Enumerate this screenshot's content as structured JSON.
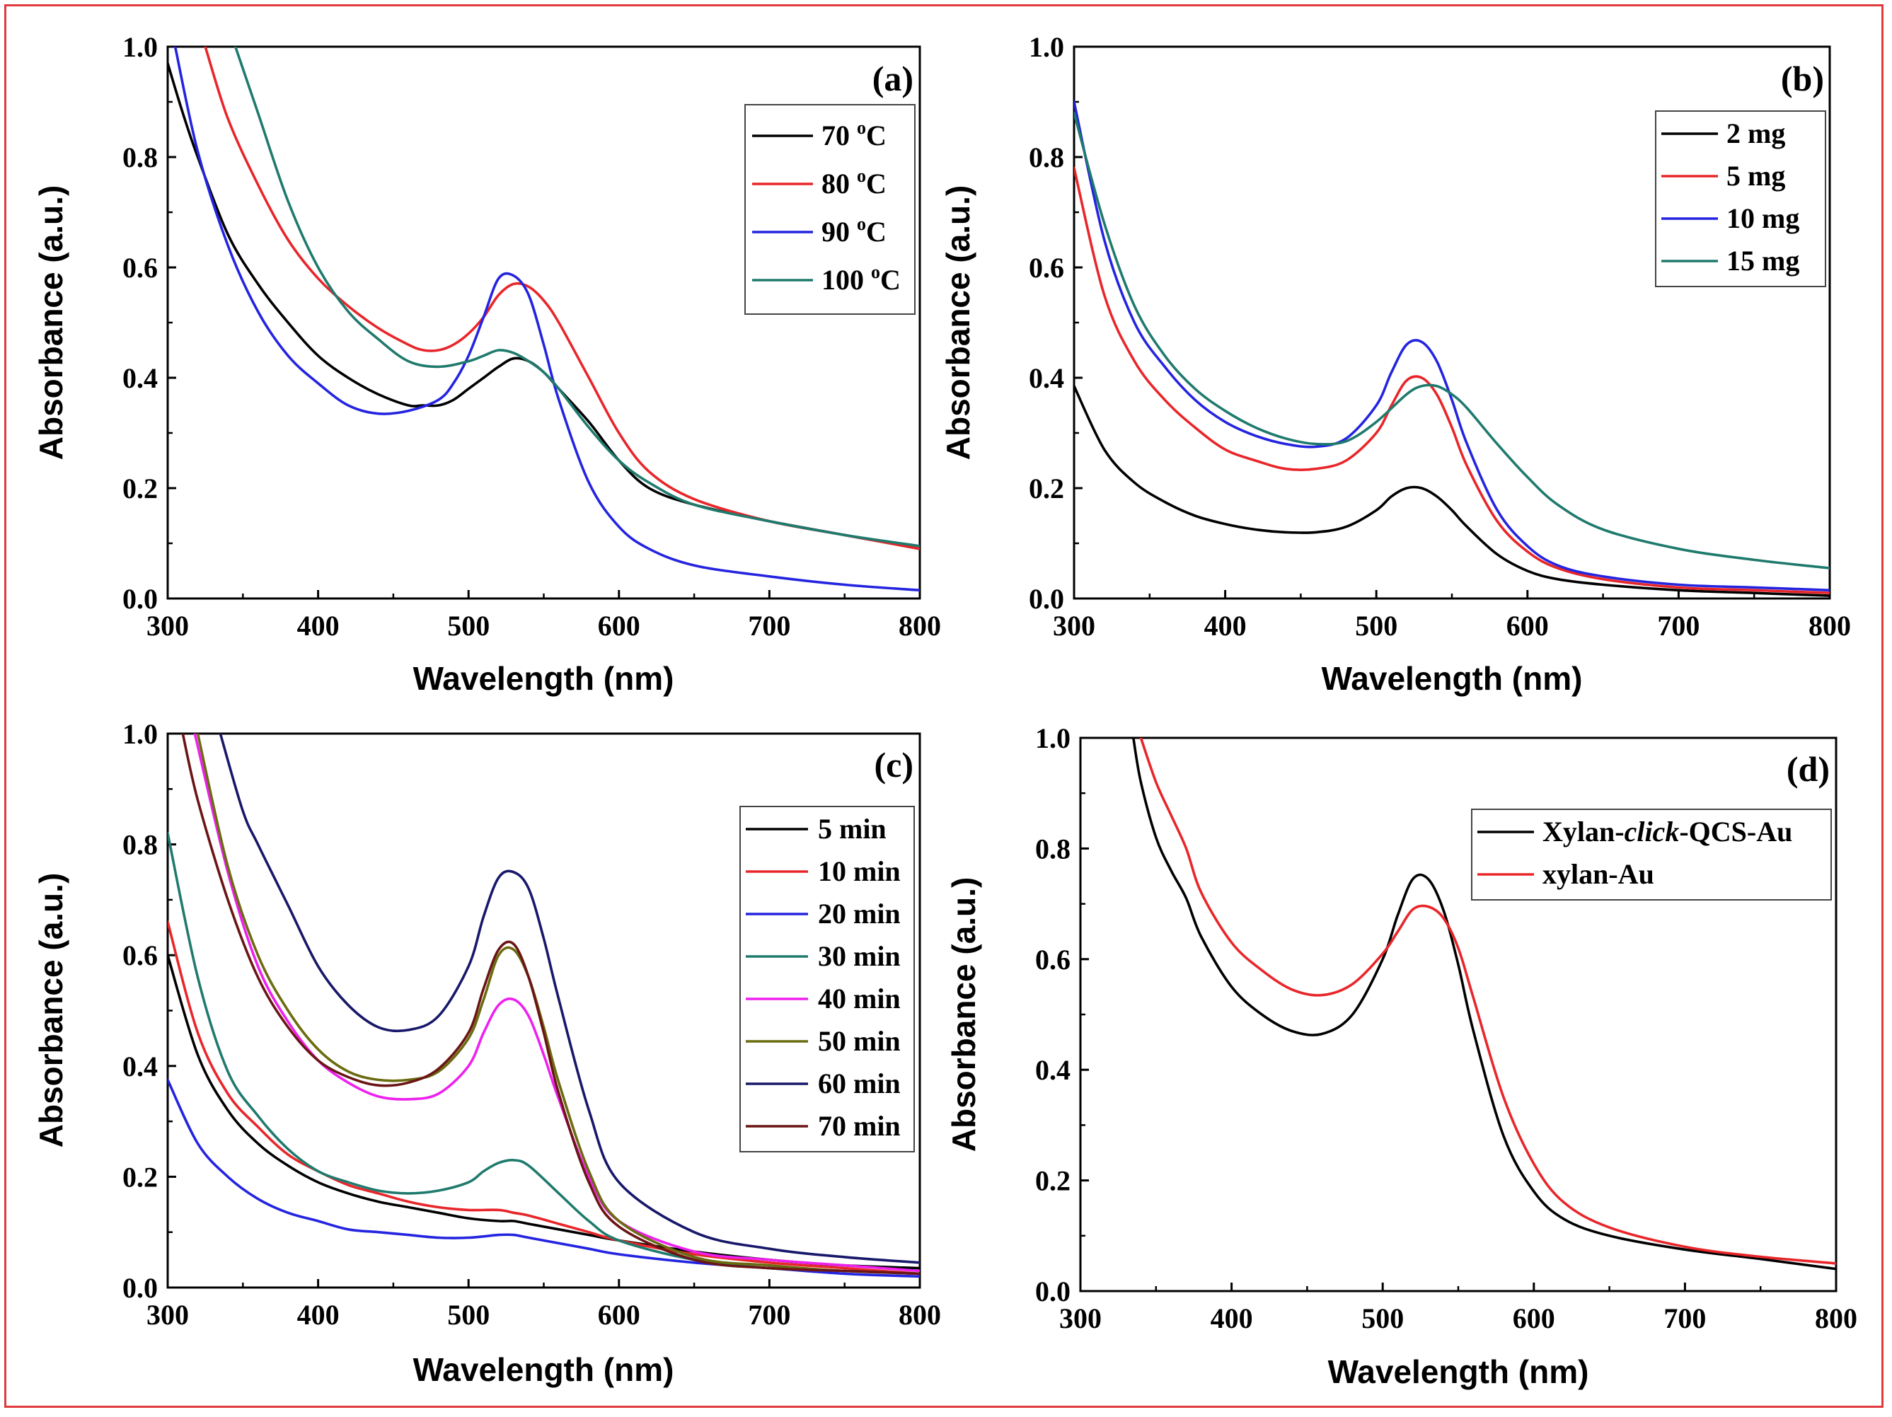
{
  "chart_data": [
    {
      "type": "line",
      "panel_label": "(a)",
      "xlabel": "Wavelength (nm)",
      "ylabel": "Absorbance (a.u.)",
      "xlim": [
        300,
        800
      ],
      "ylim": [
        0.0,
        1.0
      ],
      "xticks": [
        "300",
        "400",
        "500",
        "600",
        "700",
        "800"
      ],
      "yticks": [
        "0.0",
        "0.2",
        "0.4",
        "0.6",
        "0.8",
        "1.0"
      ],
      "legend_position": "top-right",
      "series": [
        {
          "name": "70 °C",
          "name_main": "70 ",
          "name_sup": "o",
          "name_tail": "C",
          "color": "#000000",
          "x": [
            300,
            310,
            320,
            340,
            360,
            380,
            400,
            420,
            440,
            460,
            470,
            480,
            490,
            500,
            510,
            520,
            530,
            540,
            550,
            560,
            580,
            600,
            620,
            650,
            700,
            750,
            800
          ],
          "y": [
            0.97,
            0.88,
            0.8,
            0.66,
            0.57,
            0.5,
            0.44,
            0.4,
            0.37,
            0.35,
            0.35,
            0.35,
            0.36,
            0.38,
            0.4,
            0.42,
            0.435,
            0.43,
            0.41,
            0.38,
            0.32,
            0.25,
            0.2,
            0.17,
            0.14,
            0.115,
            0.09
          ]
        },
        {
          "name": "80 °C",
          "name_main": "80 ",
          "name_sup": "o",
          "name_tail": "C",
          "color": "#e8262a",
          "x": [
            325,
            340,
            360,
            380,
            400,
            420,
            440,
            460,
            470,
            480,
            490,
            500,
            510,
            520,
            530,
            540,
            550,
            560,
            580,
            600,
            620,
            650,
            700,
            750,
            800
          ],
          "y": [
            1.0,
            0.87,
            0.75,
            0.65,
            0.58,
            0.53,
            0.49,
            0.46,
            0.45,
            0.45,
            0.46,
            0.48,
            0.51,
            0.55,
            0.57,
            0.565,
            0.54,
            0.5,
            0.4,
            0.3,
            0.23,
            0.18,
            0.14,
            0.115,
            0.09
          ]
        },
        {
          "name": "90 °C",
          "name_main": "90 ",
          "name_sup": "o",
          "name_tail": "C",
          "color": "#2424e0",
          "x": [
            305,
            320,
            340,
            360,
            380,
            400,
            420,
            440,
            460,
            480,
            490,
            500,
            510,
            520,
            530,
            540,
            550,
            560,
            580,
            600,
            620,
            650,
            700,
            750,
            800
          ],
          "y": [
            1.0,
            0.81,
            0.64,
            0.52,
            0.44,
            0.39,
            0.35,
            0.335,
            0.34,
            0.36,
            0.39,
            0.44,
            0.51,
            0.58,
            0.585,
            0.55,
            0.46,
            0.36,
            0.21,
            0.13,
            0.09,
            0.06,
            0.04,
            0.025,
            0.015
          ]
        },
        {
          "name": "100 °C",
          "name_main": "100 ",
          "name_sup": "o",
          "name_tail": "C",
          "color": "#1f7a6d",
          "x": [
            345,
            360,
            380,
            400,
            420,
            440,
            460,
            480,
            500,
            510,
            520,
            530,
            540,
            550,
            560,
            580,
            600,
            620,
            650,
            700,
            750,
            800
          ],
          "y": [
            1.0,
            0.88,
            0.72,
            0.6,
            0.52,
            0.47,
            0.43,
            0.42,
            0.43,
            0.44,
            0.45,
            0.445,
            0.43,
            0.41,
            0.38,
            0.31,
            0.25,
            0.21,
            0.17,
            0.14,
            0.115,
            0.095
          ]
        }
      ]
    },
    {
      "type": "line",
      "panel_label": "(b)",
      "xlabel": "Wavelength (nm)",
      "ylabel": "Absorbance (a.u.)",
      "xlim": [
        300,
        800
      ],
      "ylim": [
        0.0,
        1.0
      ],
      "xticks": [
        "300",
        "400",
        "500",
        "600",
        "700",
        "800"
      ],
      "yticks": [
        "0.0",
        "0.2",
        "0.4",
        "0.6",
        "0.8",
        "1.0"
      ],
      "legend_position": "top-right",
      "series": [
        {
          "name": "2 mg",
          "color": "#000000",
          "x": [
            300,
            320,
            340,
            360,
            380,
            400,
            420,
            440,
            460,
            480,
            500,
            510,
            520,
            530,
            540,
            550,
            560,
            580,
            600,
            620,
            650,
            700,
            750,
            800
          ],
          "y": [
            0.385,
            0.27,
            0.21,
            0.175,
            0.15,
            0.135,
            0.125,
            0.12,
            0.12,
            0.13,
            0.16,
            0.185,
            0.2,
            0.2,
            0.185,
            0.16,
            0.13,
            0.08,
            0.05,
            0.035,
            0.025,
            0.015,
            0.01,
            0.005
          ]
        },
        {
          "name": "5 mg",
          "color": "#e8262a",
          "x": [
            300,
            320,
            340,
            360,
            380,
            400,
            420,
            440,
            460,
            480,
            500,
            510,
            520,
            530,
            540,
            550,
            560,
            580,
            600,
            620,
            650,
            700,
            750,
            800
          ],
          "y": [
            0.78,
            0.55,
            0.43,
            0.36,
            0.31,
            0.27,
            0.25,
            0.235,
            0.235,
            0.25,
            0.3,
            0.35,
            0.395,
            0.4,
            0.37,
            0.31,
            0.24,
            0.14,
            0.085,
            0.055,
            0.035,
            0.02,
            0.015,
            0.01
          ]
        },
        {
          "name": "10 mg",
          "color": "#2424e0",
          "x": [
            300,
            320,
            340,
            360,
            380,
            400,
            420,
            440,
            460,
            480,
            500,
            510,
            520,
            530,
            540,
            550,
            560,
            580,
            600,
            620,
            650,
            700,
            750,
            800
          ],
          "y": [
            0.9,
            0.65,
            0.5,
            0.42,
            0.36,
            0.32,
            0.295,
            0.28,
            0.275,
            0.29,
            0.35,
            0.41,
            0.46,
            0.465,
            0.43,
            0.36,
            0.28,
            0.16,
            0.095,
            0.06,
            0.04,
            0.025,
            0.02,
            0.015
          ]
        },
        {
          "name": "15 mg",
          "color": "#1f7a6d",
          "x": [
            300,
            320,
            340,
            360,
            380,
            400,
            420,
            440,
            460,
            480,
            500,
            520,
            530,
            540,
            550,
            560,
            580,
            600,
            620,
            650,
            700,
            750,
            800
          ],
          "y": [
            0.88,
            0.68,
            0.53,
            0.44,
            0.38,
            0.34,
            0.31,
            0.29,
            0.28,
            0.285,
            0.32,
            0.37,
            0.385,
            0.385,
            0.37,
            0.345,
            0.28,
            0.22,
            0.17,
            0.125,
            0.09,
            0.07,
            0.055
          ]
        }
      ]
    },
    {
      "type": "line",
      "panel_label": "(c)",
      "xlabel": "Wavelength (nm)",
      "ylabel": "Absorbance (a.u.)",
      "xlim": [
        300,
        800
      ],
      "ylim": [
        0.0,
        1.0
      ],
      "xticks": [
        "300",
        "400",
        "500",
        "600",
        "700",
        "800"
      ],
      "yticks": [
        "0.0",
        "0.2",
        "0.4",
        "0.6",
        "0.8",
        "1.0"
      ],
      "legend_position": "top-right",
      "series": [
        {
          "name": "5 min",
          "color": "#000000",
          "x": [
            300,
            320,
            340,
            360,
            380,
            400,
            420,
            440,
            460,
            480,
            500,
            520,
            530,
            540,
            560,
            580,
            600,
            650,
            700,
            750,
            800
          ],
          "y": [
            0.6,
            0.42,
            0.32,
            0.26,
            0.22,
            0.19,
            0.17,
            0.155,
            0.145,
            0.135,
            0.125,
            0.12,
            0.12,
            0.115,
            0.105,
            0.095,
            0.085,
            0.065,
            0.05,
            0.04,
            0.035
          ]
        },
        {
          "name": "10 min",
          "color": "#e8262a",
          "x": [
            300,
            320,
            340,
            360,
            380,
            400,
            420,
            440,
            460,
            480,
            500,
            520,
            530,
            540,
            560,
            580,
            600,
            650,
            700,
            750,
            800
          ],
          "y": [
            0.66,
            0.46,
            0.35,
            0.29,
            0.24,
            0.21,
            0.185,
            0.17,
            0.155,
            0.145,
            0.14,
            0.14,
            0.135,
            0.13,
            0.115,
            0.1,
            0.085,
            0.06,
            0.045,
            0.035,
            0.025
          ]
        },
        {
          "name": "20 min",
          "color": "#2424e0",
          "x": [
            300,
            320,
            340,
            360,
            380,
            400,
            420,
            440,
            460,
            480,
            500,
            520,
            530,
            540,
            560,
            580,
            600,
            650,
            700,
            750,
            800
          ],
          "y": [
            0.375,
            0.26,
            0.2,
            0.16,
            0.135,
            0.12,
            0.105,
            0.1,
            0.095,
            0.09,
            0.09,
            0.095,
            0.095,
            0.09,
            0.08,
            0.07,
            0.06,
            0.045,
            0.035,
            0.025,
            0.02
          ]
        },
        {
          "name": "30 min",
          "color": "#1f7a6d",
          "x": [
            300,
            320,
            340,
            360,
            380,
            400,
            420,
            440,
            460,
            480,
            500,
            510,
            520,
            530,
            540,
            560,
            580,
            600,
            650,
            700,
            750,
            800
          ],
          "y": [
            0.82,
            0.56,
            0.39,
            0.31,
            0.25,
            0.21,
            0.19,
            0.175,
            0.17,
            0.175,
            0.19,
            0.21,
            0.225,
            0.23,
            0.22,
            0.17,
            0.12,
            0.085,
            0.05,
            0.035,
            0.03,
            0.025
          ]
        },
        {
          "name": "40 min",
          "color": "#ee20ee",
          "x": [
            318,
            340,
            360,
            380,
            400,
            420,
            440,
            460,
            480,
            500,
            510,
            520,
            530,
            540,
            550,
            560,
            580,
            600,
            650,
            700,
            750,
            800
          ],
          "y": [
            1.0,
            0.75,
            0.58,
            0.48,
            0.41,
            0.37,
            0.345,
            0.34,
            0.35,
            0.4,
            0.46,
            0.51,
            0.52,
            0.49,
            0.42,
            0.34,
            0.2,
            0.12,
            0.065,
            0.05,
            0.04,
            0.03
          ]
        },
        {
          "name": "50 min",
          "color": "#6b6b10",
          "x": [
            320,
            340,
            360,
            380,
            400,
            420,
            440,
            460,
            480,
            500,
            510,
            520,
            530,
            540,
            550,
            560,
            580,
            600,
            650,
            700,
            750,
            800
          ],
          "y": [
            1.0,
            0.76,
            0.6,
            0.5,
            0.43,
            0.39,
            0.375,
            0.375,
            0.39,
            0.45,
            0.52,
            0.6,
            0.61,
            0.56,
            0.47,
            0.37,
            0.21,
            0.12,
            0.055,
            0.04,
            0.03,
            0.025
          ]
        },
        {
          "name": "60 min",
          "color": "#18186a",
          "x": [
            335,
            350,
            360,
            380,
            400,
            420,
            440,
            460,
            480,
            500,
            510,
            520,
            530,
            540,
            550,
            560,
            580,
            600,
            650,
            700,
            750,
            800
          ],
          "y": [
            1.0,
            0.86,
            0.8,
            0.69,
            0.58,
            0.51,
            0.47,
            0.465,
            0.49,
            0.58,
            0.67,
            0.74,
            0.75,
            0.72,
            0.63,
            0.52,
            0.32,
            0.19,
            0.1,
            0.07,
            0.055,
            0.045
          ]
        },
        {
          "name": "70 min",
          "color": "#6b1515",
          "x": [
            310,
            320,
            340,
            360,
            380,
            400,
            420,
            440,
            460,
            480,
            500,
            510,
            520,
            530,
            540,
            550,
            560,
            580,
            600,
            650,
            700,
            750,
            800
          ],
          "y": [
            1.0,
            0.88,
            0.7,
            0.56,
            0.47,
            0.41,
            0.38,
            0.365,
            0.37,
            0.395,
            0.46,
            0.54,
            0.61,
            0.62,
            0.56,
            0.46,
            0.35,
            0.19,
            0.11,
            0.05,
            0.035,
            0.03,
            0.025
          ]
        }
      ]
    },
    {
      "type": "line",
      "panel_label": "(d)",
      "xlabel": "Wavelength (nm)",
      "ylabel": "Absorbance (a.u.)",
      "xlim": [
        300,
        800
      ],
      "ylim": [
        0.0,
        1.0
      ],
      "xticks": [
        "300",
        "400",
        "500",
        "600",
        "700",
        "800"
      ],
      "yticks": [
        "0.0",
        "0.2",
        "0.4",
        "0.6",
        "0.8",
        "1.0"
      ],
      "legend_position": "top-right",
      "series": [
        {
          "name": "Xylan-click-QCS-Au",
          "name_a": "Xylan-",
          "name_i": "click",
          "name_b": "-QCS-Au",
          "color": "#000000",
          "x": [
            335,
            340,
            350,
            360,
            370,
            380,
            400,
            420,
            440,
            460,
            480,
            500,
            510,
            520,
            530,
            540,
            550,
            560,
            580,
            600,
            620,
            650,
            700,
            750,
            800
          ],
          "y": [
            1.0,
            0.92,
            0.82,
            0.76,
            0.71,
            0.64,
            0.55,
            0.5,
            0.47,
            0.465,
            0.5,
            0.6,
            0.68,
            0.745,
            0.745,
            0.69,
            0.59,
            0.47,
            0.28,
            0.18,
            0.13,
            0.1,
            0.075,
            0.058,
            0.04
          ]
        },
        {
          "name": "xylan-Au",
          "color": "#e8262a",
          "x": [
            340,
            350,
            360,
            370,
            380,
            400,
            420,
            440,
            460,
            480,
            500,
            510,
            520,
            530,
            540,
            550,
            560,
            580,
            600,
            620,
            650,
            700,
            750,
            800
          ],
          "y": [
            1.0,
            0.92,
            0.86,
            0.8,
            0.72,
            0.63,
            0.58,
            0.545,
            0.535,
            0.555,
            0.61,
            0.65,
            0.69,
            0.695,
            0.675,
            0.62,
            0.53,
            0.35,
            0.23,
            0.16,
            0.115,
            0.08,
            0.062,
            0.05
          ]
        }
      ]
    }
  ]
}
